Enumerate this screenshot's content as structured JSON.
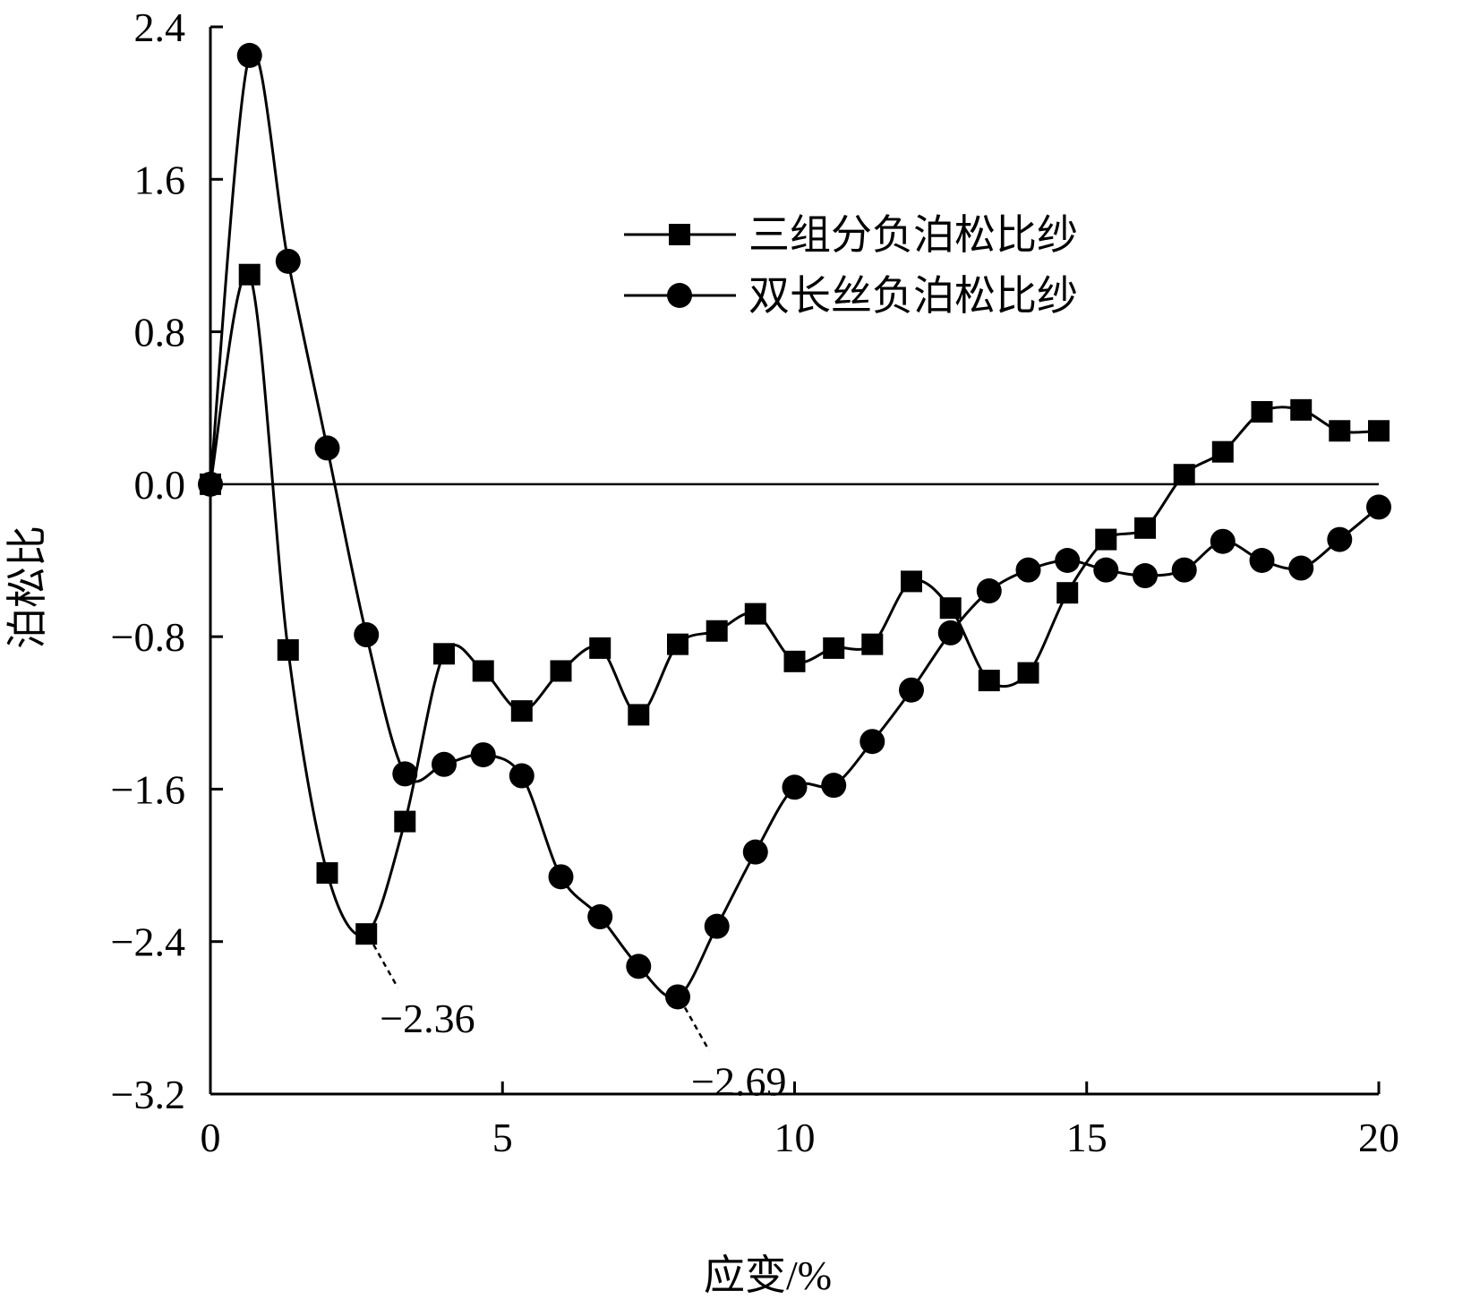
{
  "chart_data": {
    "type": "line",
    "title": "",
    "xlabel": "应变/%",
    "ylabel": "泊松比",
    "xlim": [
      0,
      20
    ],
    "ylim": [
      -3.2,
      2.4
    ],
    "xticks": [
      "0",
      "5",
      "10",
      "15",
      "20"
    ],
    "yticks": [
      "2.4",
      "1.6",
      "0.8",
      "0.0",
      "−0.8",
      "−1.6",
      "−2.4",
      "−3.2"
    ],
    "grid": false,
    "zero_line": true,
    "legend_position": "top-right",
    "series": [
      {
        "name": "三组分负泊松比纱",
        "marker": "square",
        "color": "#000000",
        "x": [
          0,
          0.67,
          1.33,
          2.0,
          2.67,
          3.33,
          4.0,
          4.67,
          5.33,
          6.0,
          6.67,
          7.33,
          8.0,
          8.67,
          9.33,
          10.0,
          10.67,
          11.33,
          12.0,
          12.67,
          13.33,
          14.0,
          14.67,
          15.33,
          16.0,
          16.67,
          17.33,
          18.0,
          18.67,
          19.33,
          20.0
        ],
        "y": [
          0.0,
          1.1,
          -0.87,
          -2.04,
          -2.36,
          -1.77,
          -0.89,
          -0.98,
          -1.19,
          -0.98,
          -0.86,
          -1.21,
          -0.84,
          -0.77,
          -0.68,
          -0.93,
          -0.86,
          -0.84,
          -0.51,
          -0.65,
          -1.03,
          -0.99,
          -0.57,
          -0.29,
          -0.23,
          0.05,
          0.17,
          0.38,
          0.39,
          0.28,
          0.28
        ]
      },
      {
        "name": "双长丝负泊松比纱",
        "marker": "circle",
        "color": "#000000",
        "x": [
          0,
          0.67,
          1.33,
          2.0,
          2.67,
          3.33,
          4.0,
          4.67,
          5.33,
          6.0,
          6.67,
          7.33,
          8.0,
          8.67,
          9.33,
          10.0,
          10.67,
          11.33,
          12.0,
          12.67,
          13.33,
          14.0,
          14.67,
          15.33,
          16.0,
          16.67,
          17.33,
          18.0,
          18.67,
          19.33,
          20.0
        ],
        "y": [
          0.0,
          2.25,
          1.17,
          0.19,
          -0.79,
          -1.52,
          -1.47,
          -1.42,
          -1.53,
          -2.06,
          -2.27,
          -2.53,
          -2.69,
          -2.32,
          -1.93,
          -1.59,
          -1.58,
          -1.35,
          -1.08,
          -0.78,
          -0.56,
          -0.45,
          -0.4,
          -0.45,
          -0.48,
          -0.45,
          -0.3,
          -0.4,
          -0.44,
          -0.29,
          -0.12
        ]
      }
    ],
    "annotations": [
      {
        "text": "−2.36",
        "x": 2.67,
        "y": -2.36
      },
      {
        "text": "−2.69",
        "x": 8.0,
        "y": -2.69
      }
    ]
  }
}
